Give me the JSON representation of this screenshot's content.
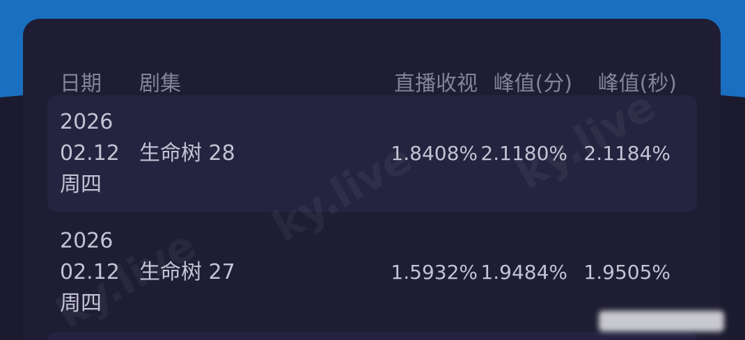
{
  "header": {
    "date": "日期",
    "episode": "剧集",
    "live_rating": "直播收视",
    "peak_min": "峰值(分)",
    "peak_sec": "峰值(秒)"
  },
  "rows": [
    {
      "year": "2026",
      "date": "02.12",
      "weekday": "周四",
      "episode": "生命树 28",
      "live_rating": "1.8408%",
      "peak_min": "2.1180%",
      "peak_sec": "2.1184%"
    },
    {
      "year": "2026",
      "date": "02.12",
      "weekday": "周四",
      "episode": "生命树 27",
      "live_rating": "1.5932%",
      "peak_min": "1.9484%",
      "peak_sec": "1.9505%"
    }
  ],
  "watermark": "ky.live",
  "colors": {
    "accent_blue": "#1a6fc0",
    "background": "#1b1a2e",
    "card": "#1f1d33",
    "row_highlight": "#25233f"
  }
}
